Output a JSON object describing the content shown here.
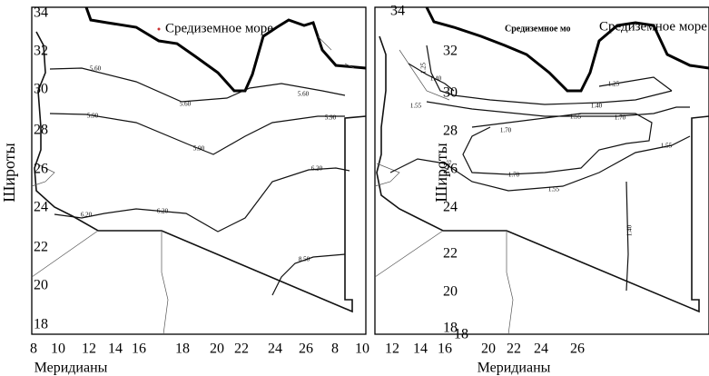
{
  "panels": [
    {
      "sea_label": "Средиземное море",
      "y_label": "Широты",
      "x_label": "Меридианы",
      "y_ticks": [
        "34",
        "32",
        "30",
        "28",
        "26",
        "24",
        "22",
        "20",
        "18"
      ],
      "x_ticks": [
        "8",
        "10",
        "12",
        "14",
        "16",
        "18",
        "20",
        "22",
        "24",
        "26",
        "8",
        "10"
      ],
      "contour_labels": [
        "5.60",
        "5.60",
        "5.60",
        "5.90",
        "5.90",
        "5.90",
        "6.20",
        "6.20",
        "6.20",
        "8.50"
      ]
    },
    {
      "sea_label_small": "Средиземное мо",
      "sea_label": "Средиземное море",
      "y_label": "Широты",
      "x_label": "Меридианы",
      "y_ticks": [
        "34",
        "32",
        "30",
        "28",
        "26",
        "24",
        "22",
        "20",
        "18"
      ],
      "x_ticks": [
        "12",
        "14",
        "16",
        "18",
        "20",
        "22",
        "24",
        "26"
      ],
      "contour_labels": [
        "1.40",
        "1.25",
        "1.25",
        "1.40",
        "1.55",
        "1.55",
        "1.70",
        "1.70",
        "1.55",
        "1.55",
        "1.70",
        "1.55",
        "1.40"
      ]
    }
  ]
}
